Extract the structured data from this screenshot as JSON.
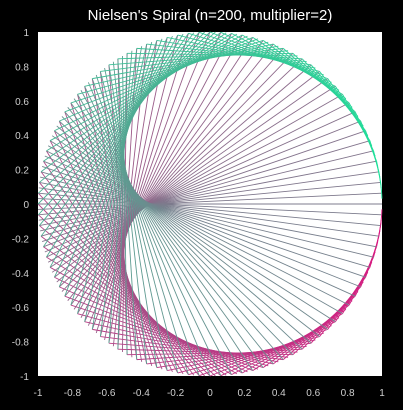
{
  "chart_data": {
    "type": "line",
    "title": "Nielsen's Spiral (n=200, multiplier=2)",
    "n": 200,
    "multiplier": 2,
    "xlim": [
      -1,
      1
    ],
    "ylim": [
      -1,
      1
    ],
    "xlabel": "",
    "ylabel": "",
    "grid": false,
    "x_ticks": [
      "-1",
      "-0.8",
      "-0.6",
      "-0.4",
      "-0.2",
      "0",
      "0.2",
      "0.4",
      "0.6",
      "0.8",
      "1"
    ],
    "y_ticks": [
      "1",
      "0.8",
      "0.6",
      "0.4",
      "0.2",
      "0",
      "-0.2",
      "-0.4",
      "-0.6",
      "-0.8",
      "-1"
    ],
    "colors": {
      "background": "#000000",
      "plot_area": "#ffffff",
      "line_start": "#e0117f",
      "line_end": "#1be39a",
      "text": "#ffffff",
      "tick_text": "#cfcfcf"
    }
  }
}
